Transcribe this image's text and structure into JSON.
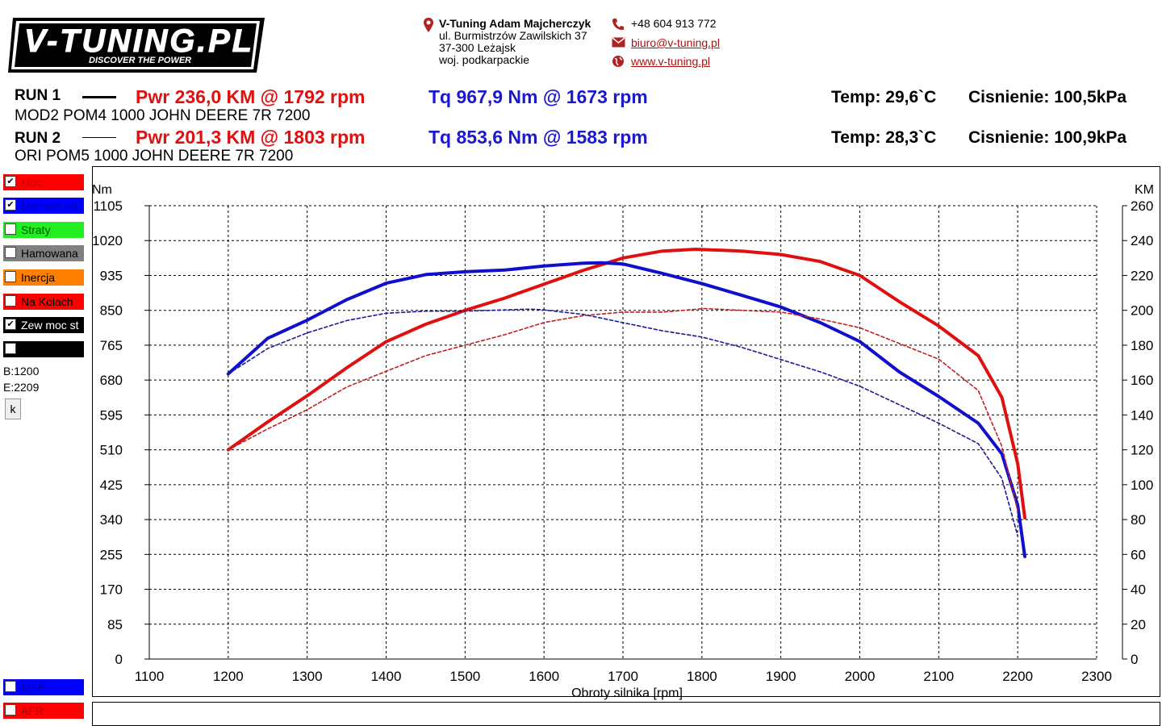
{
  "logo": {
    "main": "V-TUNING.PL",
    "tagline": "DISCOVER THE POWER"
  },
  "contact": {
    "company": "V-Tuning Adam Majcherczyk",
    "street": "ul. Burmistrzów Zawilskich 37",
    "city": "37-300 Leżajsk",
    "region": "woj. podkarpackie",
    "phone": "+48 604 913 772",
    "email": "biuro@v-tuning.pl",
    "web": "www.v-tuning.pl",
    "icons": [
      "location-pin-icon",
      "phone-icon",
      "mail-icon",
      "globe-icon"
    ]
  },
  "runs": [
    {
      "label": "RUN 1",
      "pwr": "Pwr  236,0 KM @ 1792 rpm",
      "tq": "Tq 967,9 Nm @ 1673 rpm",
      "desc": "MOD2 POM4 1000 JOHN DEERE 7R 7200",
      "temp": "Temp: 29,6`C",
      "pressure": "Cisnienie: 100,5kPa",
      "line_style": "solid"
    },
    {
      "label": "RUN 2",
      "pwr": "Pwr  201,3 KM @ 1803 rpm",
      "tq": "Tq 853,6 Nm @ 1583 rpm",
      "desc": "ORI POM5 1000 JOHN DEERE 7R 7200",
      "temp": "Temp: 28,3`C",
      "pressure": "Cisnienie: 100,9kPa",
      "line_style": "thin"
    }
  ],
  "legend": [
    {
      "label": "Moc",
      "checked": true,
      "color": "#ff0000",
      "text_color": "#cc0000"
    },
    {
      "label": "Moment ob",
      "checked": true,
      "color": "#0000ff",
      "text_color": "#0000aa"
    },
    {
      "label": "Straty",
      "checked": false,
      "color": "#22ee22",
      "text_color": "#005500"
    },
    {
      "label": "Hamowana",
      "checked": false,
      "color": "#808080",
      "text_color": "#000000"
    },
    {
      "label": "Inercja",
      "checked": false,
      "color": "#ff8000",
      "text_color": "#000000"
    },
    {
      "label": "Na Kolach",
      "checked": false,
      "color": "#ff0000",
      "text_color": "#000000"
    },
    {
      "label": "Zew moc st",
      "checked": true,
      "color": "#000000",
      "text_color": "#ffffff"
    },
    {
      "label": "",
      "checked": false,
      "color": "#000000",
      "text_color": "#ffffff"
    }
  ],
  "range": {
    "b": "B:1200",
    "e": "E:2209"
  },
  "k_button": "k",
  "legend_bottom": [
    {
      "label": "MAP",
      "checked": false,
      "color": "#0000ff",
      "text_color": "#0000aa"
    },
    {
      "label": "AFR",
      "checked": false,
      "color": "#ff0000",
      "text_color": "#aa0000"
    }
  ],
  "chart_data": {
    "type": "line",
    "xlabel": "Obroty silnika [rpm]",
    "ylabel_left": "Nm",
    "ylabel_right": "KM",
    "xlim": [
      1100,
      2300
    ],
    "ylim_left": [
      0,
      1105
    ],
    "ylim_right": [
      0,
      260
    ],
    "x_ticks": [
      1100,
      1200,
      1300,
      1400,
      1500,
      1600,
      1700,
      1800,
      1900,
      2000,
      2100,
      2200,
      2300
    ],
    "y_ticks_left": [
      0,
      85,
      170,
      255,
      340,
      425,
      510,
      595,
      680,
      765,
      850,
      935,
      1020,
      1105
    ],
    "y_ticks_right": [
      0,
      20,
      40,
      60,
      80,
      100,
      120,
      140,
      160,
      180,
      200,
      220,
      240,
      260
    ],
    "grid": true,
    "series": [
      {
        "name": "Moc",
        "run": "RUN 1",
        "axis": "right",
        "color": "#e01010",
        "style": "solid",
        "x": [
          1200,
          1250,
          1300,
          1350,
          1400,
          1450,
          1500,
          1550,
          1600,
          1650,
          1700,
          1750,
          1792,
          1850,
          1900,
          1950,
          2000,
          2050,
          2100,
          2150,
          2180,
          2200,
          2209
        ],
        "y": [
          120,
          136,
          151,
          167,
          182,
          192,
          200,
          207,
          215,
          223,
          230,
          234,
          235,
          234,
          232,
          228,
          220,
          205,
          191,
          174,
          150,
          112,
          81
        ]
      },
      {
        "name": "Moment ob",
        "run": "RUN 1",
        "axis": "left",
        "color": "#1010cc",
        "style": "solid",
        "x": [
          1200,
          1250,
          1300,
          1350,
          1400,
          1450,
          1500,
          1550,
          1600,
          1650,
          1673,
          1700,
          1750,
          1800,
          1850,
          1900,
          1950,
          2000,
          2050,
          2100,
          2150,
          2180,
          2200,
          2209
        ],
        "y": [
          695,
          782,
          826,
          876,
          916,
          937,
          944,
          948,
          958,
          965,
          966,
          963,
          940,
          915,
          887,
          858,
          820,
          774,
          700,
          640,
          575,
          500,
          375,
          250
        ]
      },
      {
        "name": "Moc",
        "run": "RUN 2",
        "axis": "right",
        "color": "#c02020",
        "style": "dashed",
        "x": [
          1200,
          1250,
          1300,
          1350,
          1400,
          1450,
          1500,
          1550,
          1600,
          1650,
          1700,
          1750,
          1803,
          1850,
          1900,
          1950,
          2000,
          2050,
          2100,
          2150,
          2180,
          2200
        ],
        "y": [
          120,
          132,
          143,
          156,
          165,
          174,
          180,
          186,
          193,
          197,
          199,
          199,
          201,
          200,
          199,
          195,
          190,
          181,
          172,
          154,
          122,
          85
        ]
      },
      {
        "name": "Moment ob",
        "run": "RUN 2",
        "axis": "left",
        "color": "#1a1a99",
        "style": "dashed",
        "x": [
          1200,
          1250,
          1300,
          1350,
          1400,
          1450,
          1500,
          1550,
          1583,
          1600,
          1650,
          1700,
          1750,
          1800,
          1850,
          1900,
          1950,
          2000,
          2050,
          2100,
          2150,
          2180,
          2200
        ],
        "y": [
          695,
          757,
          795,
          825,
          843,
          848,
          848,
          851,
          853,
          851,
          840,
          820,
          800,
          785,
          760,
          730,
          700,
          665,
          620,
          575,
          525,
          440,
          300
        ]
      }
    ]
  }
}
